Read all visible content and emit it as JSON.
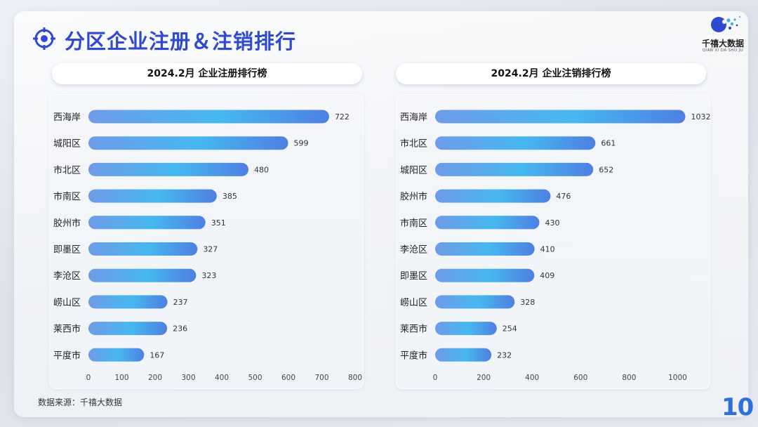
{
  "header": {
    "title": "分区企业注册＆注销排行"
  },
  "logo": {
    "name": "千禧大数据",
    "subtitle": "QIAN XI DA SHU JU"
  },
  "colors": {
    "title": "#2f49d1",
    "bar_start": "#6f9be8",
    "bar_mid": "#46b8ef",
    "bar_end": "#4f7fe2"
  },
  "chart_data": [
    {
      "type": "bar",
      "orientation": "horizontal",
      "title": "2024.2月 企业注册排行榜",
      "categories": [
        "西海岸",
        "城阳区",
        "市北区",
        "市南区",
        "胶州市",
        "即墨区",
        "李沧区",
        "崂山区",
        "莱西市",
        "平度市"
      ],
      "values": [
        722,
        599,
        480,
        385,
        351,
        327,
        323,
        237,
        236,
        167
      ],
      "xlim": [
        0,
        800
      ],
      "xticks": [
        0,
        100,
        200,
        300,
        400,
        500,
        600,
        700,
        800
      ]
    },
    {
      "type": "bar",
      "orientation": "horizontal",
      "title": "2024.2月 企业注销排行榜",
      "categories": [
        "西海岸",
        "市北区",
        "城阳区",
        "胶州市",
        "市南区",
        "李沧区",
        "即墨区",
        "崂山区",
        "莱西市",
        "平度市"
      ],
      "values": [
        1032,
        661,
        652,
        476,
        430,
        410,
        409,
        328,
        254,
        232
      ],
      "xlim": [
        0,
        1100
      ],
      "xticks": [
        0,
        200,
        400,
        600,
        800,
        1000
      ]
    }
  ],
  "footer": {
    "source": "数据来源：千禧大数据",
    "page_number": "10"
  }
}
